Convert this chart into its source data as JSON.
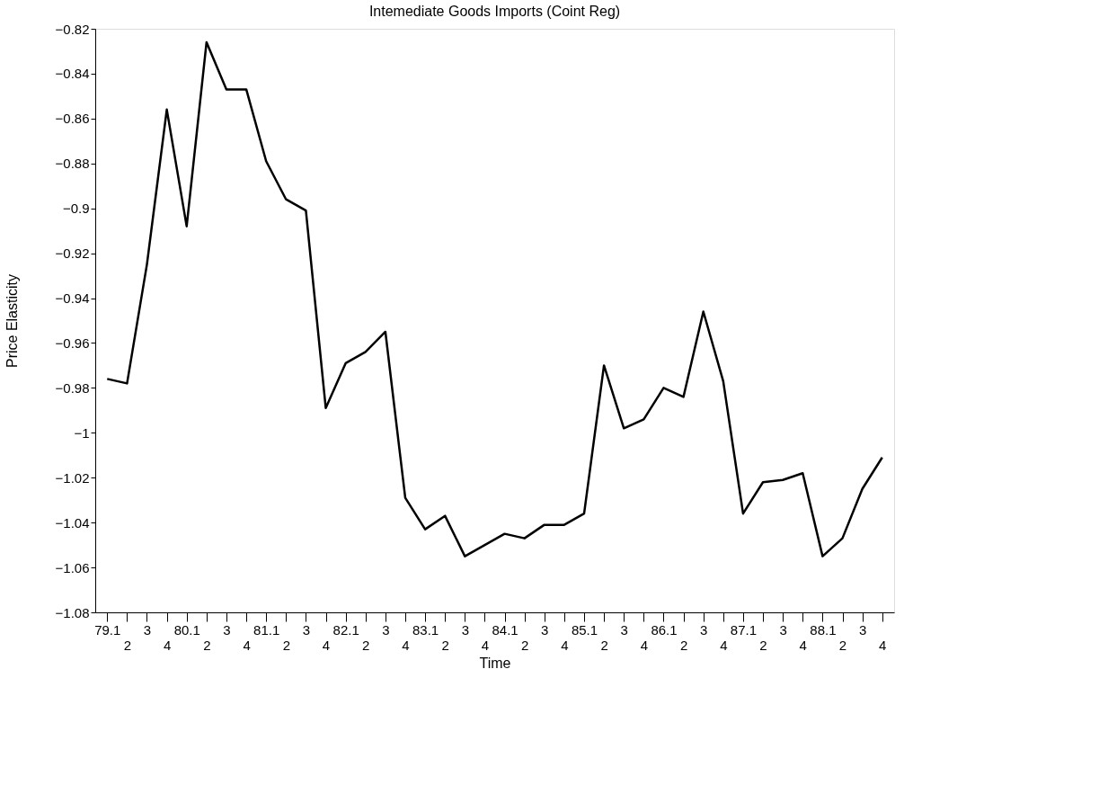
{
  "chart_data": {
    "type": "line",
    "title": "Intemediate Goods Imports (Coint Reg)",
    "xlabel": "Time",
    "ylabel": "Price Elasticity",
    "categories": [
      "79.1",
      "2",
      "3",
      "4",
      "80.1",
      "2",
      "3",
      "4",
      "81.1",
      "2",
      "3",
      "4",
      "82.1",
      "2",
      "3",
      "4",
      "83.1",
      "2",
      "3",
      "4",
      "84.1",
      "2",
      "3",
      "4",
      "85.1",
      "2",
      "3",
      "4",
      "86.1",
      "2",
      "3",
      "4",
      "87.1",
      "2",
      "3",
      "4",
      "88.1",
      "2",
      "3",
      "4"
    ],
    "series": [
      {
        "color": "#000000",
        "values": [
          -0.976,
          -0.978,
          -0.925,
          -0.856,
          -0.908,
          -0.826,
          -0.847,
          -0.847,
          -0.879,
          -0.896,
          -0.901,
          -0.989,
          -0.969,
          -0.964,
          -0.955,
          -1.029,
          -1.043,
          -1.037,
          -1.055,
          -1.05,
          -1.045,
          -1.047,
          -1.041,
          -1.041,
          -1.036,
          -0.97,
          -0.998,
          -0.994,
          -0.98,
          -0.984,
          -0.946,
          -0.977,
          -1.036,
          -1.022,
          -1.021,
          -1.018,
          -1.055,
          -1.047,
          -1.025,
          -1.011
        ]
      }
    ],
    "ylim": [
      -1.08,
      -0.82
    ],
    "yticks": [
      -1.08,
      -1.06,
      -1.04,
      -1.02,
      -1,
      -0.98,
      -0.96,
      -0.94,
      -0.92,
      -0.9,
      -0.88,
      -0.86,
      -0.84,
      -0.82
    ],
    "grid": false,
    "marker": "none",
    "line_style": "solid"
  }
}
